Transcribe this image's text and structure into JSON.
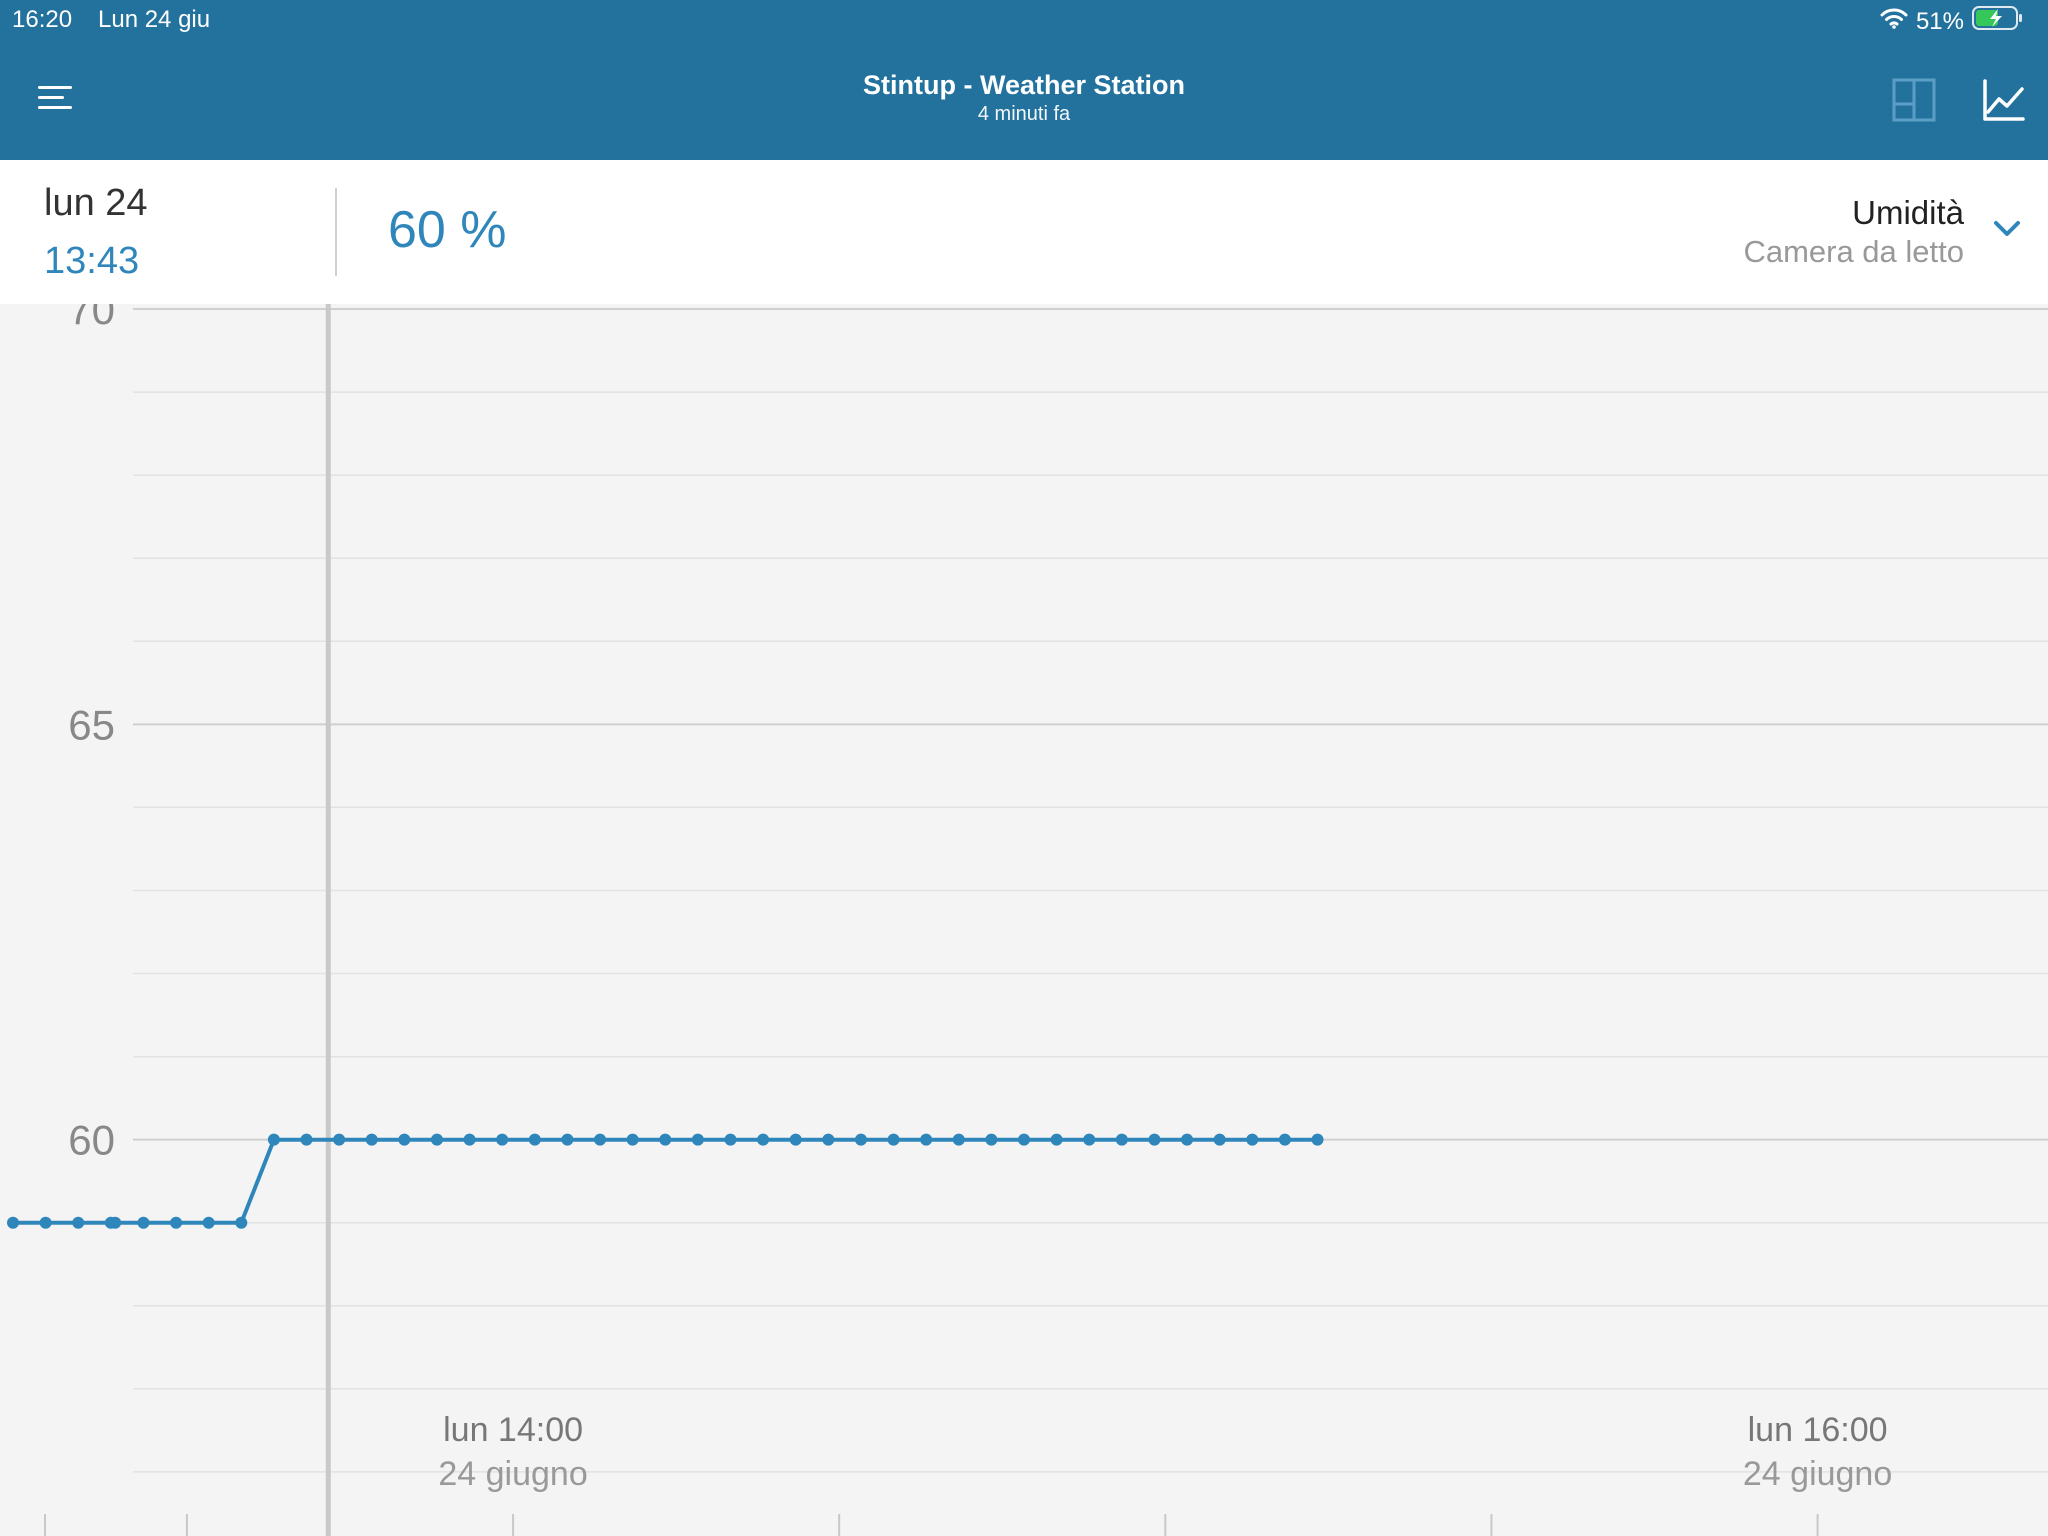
{
  "status": {
    "time": "16:20",
    "date": "Lun 24 giu",
    "battery": "51%"
  },
  "header": {
    "title": "Stintup - Weather Station",
    "subtitle": "4 minuti fa"
  },
  "info": {
    "day": "lun 24",
    "time": "13:43",
    "value": "60 %",
    "metric": "Umidità",
    "room": "Camera da letto"
  },
  "colors": {
    "header": "#23729d",
    "accent": "#2f86bb",
    "plot_bg": "#f4f4f4"
  },
  "chart_data": {
    "type": "line",
    "ylim": [
      55,
      70
    ],
    "yticks": [
      55,
      60,
      65,
      70
    ],
    "xlim": [
      "13:14",
      "16:20"
    ],
    "xtick_labels": [
      {
        "time": "14:00",
        "label": "lun 14:00",
        "sublabel": "24 giugno"
      },
      {
        "time": "16:00",
        "label": "lun 16:00",
        "sublabel": "24 giugno"
      }
    ],
    "cursor_time": "13:43",
    "series": [
      {
        "points": [
          [
            "13:14",
            59
          ],
          [
            "13:17",
            59
          ],
          [
            "13:20",
            59
          ],
          [
            "13:23",
            59
          ],
          [
            "13:23.4",
            59
          ],
          [
            "13:26",
            59
          ],
          [
            "13:29",
            59
          ],
          [
            "13:32",
            59
          ],
          [
            "13:35",
            59
          ],
          [
            "13:38",
            60
          ],
          [
            "13:41",
            60
          ],
          [
            "13:44",
            60
          ],
          [
            "13:47",
            60
          ],
          [
            "13:50",
            60
          ],
          [
            "13:53",
            60
          ],
          [
            "13:56",
            60
          ],
          [
            "13:59",
            60
          ],
          [
            "14:02",
            60
          ],
          [
            "14:05",
            60
          ],
          [
            "14:08",
            60
          ],
          [
            "14:11",
            60
          ],
          [
            "14:14",
            60
          ],
          [
            "14:17",
            60
          ],
          [
            "14:20",
            60
          ],
          [
            "14:23",
            60
          ],
          [
            "14:26",
            60
          ],
          [
            "14:29",
            60
          ],
          [
            "14:32",
            60
          ],
          [
            "14:35",
            60
          ],
          [
            "14:38",
            60
          ],
          [
            "14:41",
            60
          ],
          [
            "14:44",
            60
          ],
          [
            "14:47",
            60
          ],
          [
            "14:50",
            60
          ],
          [
            "14:53",
            60
          ],
          [
            "14:56",
            60
          ],
          [
            "14:59",
            60
          ],
          [
            "15:02",
            60
          ],
          [
            "15:05",
            60
          ],
          [
            "15:08",
            60
          ],
          [
            "15:11",
            60
          ],
          [
            "15:14",
            60
          ]
        ]
      }
    ]
  }
}
